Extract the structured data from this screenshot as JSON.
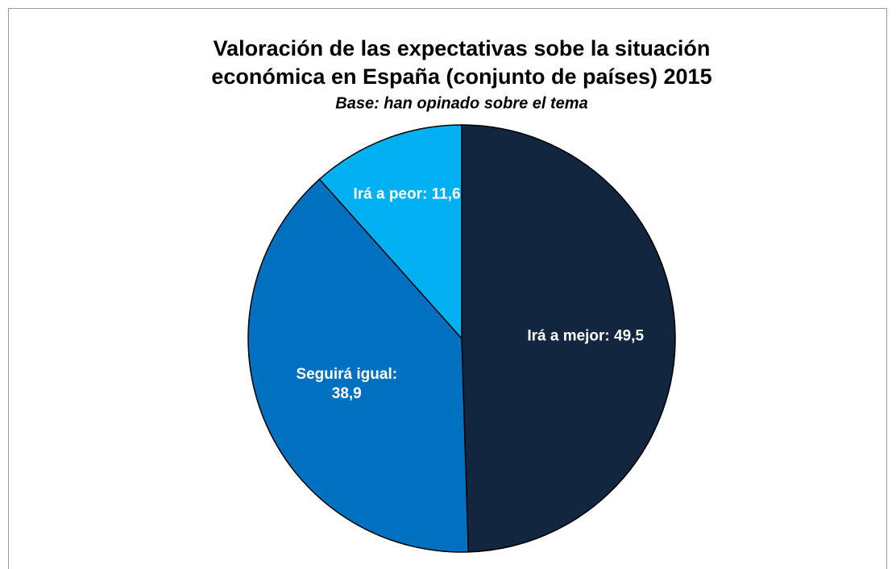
{
  "chart_data": {
    "type": "pie",
    "title": [
      "Valoración de las expectativas sobe la situación",
      "económica en España (conjunto de países) 2015"
    ],
    "subtitle": "Base: han opinado sobre el tema",
    "values": [
      49.5,
      38.9,
      11.6
    ],
    "value_labels": [
      "Irá a mejor: 49,5",
      "Seguirá igual:\n38,9",
      "Irá a peor: 11,6"
    ],
    "colors": [
      "#12263f",
      "#0070c0",
      "#00b0f0"
    ]
  }
}
